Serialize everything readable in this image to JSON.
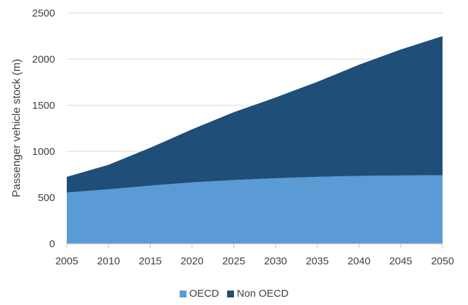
{
  "chart_data": {
    "type": "area",
    "stacked": true,
    "x": [
      2005,
      2010,
      2015,
      2020,
      2025,
      2030,
      2035,
      2040,
      2045,
      2050
    ],
    "ylabel": "Passenger vehicle stock (m)",
    "ylim": [
      0,
      2500
    ],
    "yticks": [
      0,
      500,
      1000,
      1500,
      2000,
      2500
    ],
    "grid": true,
    "legend_position": "bottom",
    "series": [
      {
        "name": "OECD",
        "color": "#5b9bd5",
        "values": [
          555,
          590,
          630,
          665,
          690,
          710,
          725,
          735,
          740,
          743
        ]
      },
      {
        "name": "Non OECD",
        "color": "#1f4e79",
        "values": [
          170,
          265,
          410,
          575,
          735,
          875,
          1030,
          1205,
          1365,
          1507
        ]
      }
    ]
  }
}
